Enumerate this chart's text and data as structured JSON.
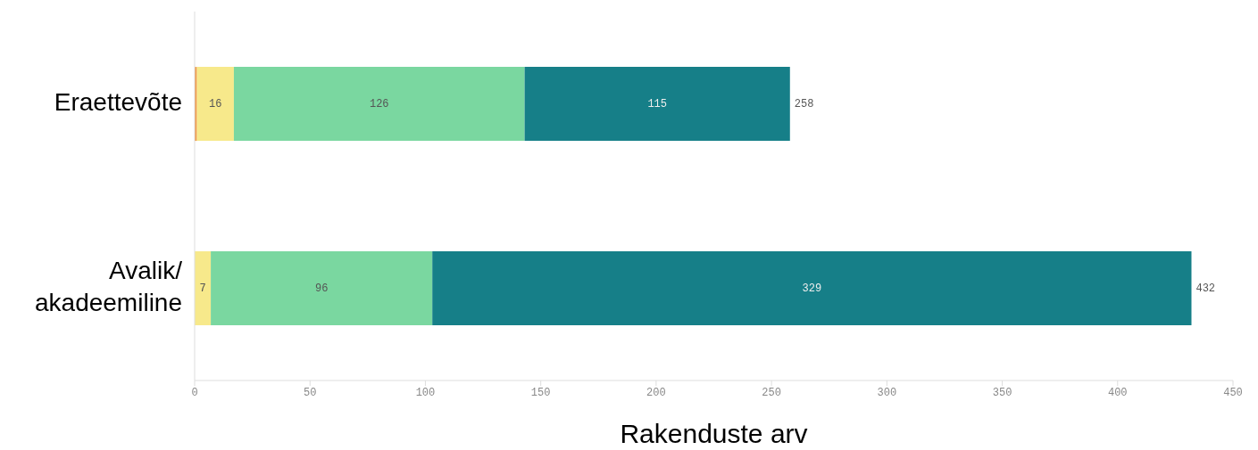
{
  "chart_data": {
    "type": "bar",
    "orientation": "horizontal",
    "stacked": true,
    "xlabel": "Rakenduste arv",
    "categories": [
      "Eraettevõte",
      "Avalik/ akadeemiline"
    ],
    "series": [
      {
        "color": "#ee9a4a",
        "values": [
          1,
          0
        ],
        "value_labels": [
          null,
          null
        ]
      },
      {
        "color": "#f7e98b",
        "values": [
          16,
          7
        ],
        "value_labels": [
          "16",
          "7"
        ]
      },
      {
        "color": "#7ad7a0",
        "values": [
          126,
          96
        ],
        "value_labels": [
          "126",
          "96"
        ]
      },
      {
        "color": "#167f88",
        "values": [
          115,
          329
        ],
        "value_labels": [
          "115",
          "329"
        ]
      }
    ],
    "totals": [
      "258",
      "432"
    ],
    "xlim": [
      0,
      450
    ],
    "xticks": [
      0,
      50,
      100,
      150,
      200,
      250,
      300,
      350,
      400,
      450
    ],
    "grid": false,
    "legend": false
  }
}
